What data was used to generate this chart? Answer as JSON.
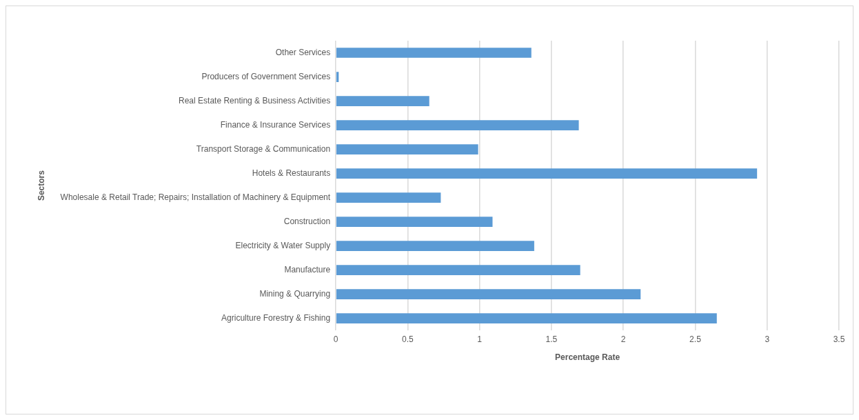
{
  "chart_data": {
    "type": "bar",
    "orientation": "horizontal",
    "xlabel": "Percentage Rate",
    "ylabel": "Sectors",
    "categories": [
      "Other Services",
      "Producers of Government Services",
      "Real Estate Renting & Business Activities",
      "Finance & Insurance Services",
      "Transport Storage & Communication",
      "Hotels & Restaurants",
      "Wholesale & Retail Trade; Repairs; Installation of Machinery & Equipment",
      "Construction",
      "Electricity & Water Supply",
      "Manufacture",
      "Mining & Quarrying",
      "Agriculture Forestry & Fishing"
    ],
    "values": [
      1.36,
      0.02,
      0.65,
      1.69,
      0.99,
      2.93,
      0.73,
      1.09,
      1.38,
      1.7,
      2.12,
      2.65
    ],
    "color": "#5b9bd5",
    "xlim": [
      0,
      3.5
    ],
    "xticks": [
      0,
      0.5,
      1,
      1.5,
      2,
      2.5,
      3,
      3.5
    ],
    "grid": "x",
    "legend": false
  }
}
